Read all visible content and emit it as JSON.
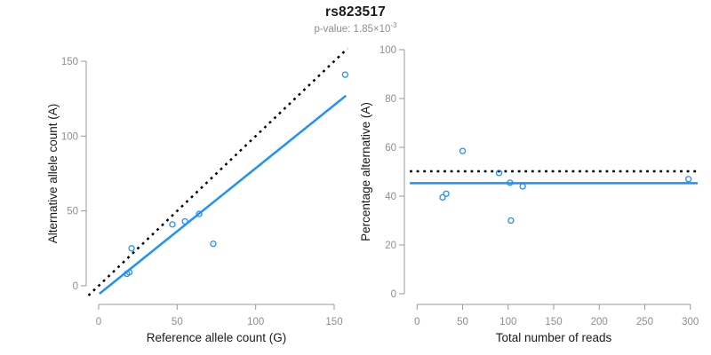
{
  "header": {
    "title": "rs823517",
    "pvalue_label": "p-value: 1.85×10",
    "pvalue_exponent": "-3"
  },
  "colors": {
    "accent_blue": "#1E90FF",
    "line_black": "#000000",
    "axis_gray": "#999999",
    "tick_label_gray": "#8e8e8e",
    "axis_title_color": "#1a1a1a"
  },
  "chart_data": [
    {
      "type": "scatter",
      "name": "allele-count-scatter",
      "title": "",
      "xlabel": "Reference allele count (G)",
      "ylabel": "Alternative allele count (A)",
      "x_ticks": [
        0,
        50,
        100,
        150
      ],
      "y_ticks": [
        0,
        50,
        100,
        150
      ],
      "xlim": [
        -7,
        159
      ],
      "ylim": [
        -7,
        159
      ],
      "grid": false,
      "legend": null,
      "points": [
        [
          18,
          8
        ],
        [
          19.5,
          9
        ],
        [
          21,
          25
        ],
        [
          47,
          41
        ],
        [
          55,
          43
        ],
        [
          64,
          48
        ],
        [
          73,
          28
        ],
        [
          157,
          141
        ]
      ],
      "lines": [
        {
          "name": "identity-line",
          "style": "dotted",
          "color": "#000000",
          "x1": -6.5,
          "y1": -6.5,
          "x2": 158.5,
          "y2": 158.5
        },
        {
          "name": "regression-line",
          "style": "solid",
          "color": "#1E90FF",
          "x1": 0.5,
          "y1": -5.3,
          "x2": 157.5,
          "y2": 127
        }
      ]
    },
    {
      "type": "scatter",
      "name": "percentage-scatter",
      "title": "",
      "xlabel": "Total number of reads",
      "ylabel": "Percentage alternative (A)",
      "x_ticks": [
        0,
        50,
        100,
        150,
        200,
        250,
        300
      ],
      "y_ticks": [
        0,
        20,
        40,
        60,
        80,
        100
      ],
      "xlim": [
        -8,
        310
      ],
      "ylim": [
        0,
        100
      ],
      "grid": false,
      "legend": null,
      "points": [
        [
          28,
          39.5
        ],
        [
          32,
          41
        ],
        [
          50,
          58.5
        ],
        [
          90,
          49.5
        ],
        [
          102,
          45.5
        ],
        [
          116,
          44
        ],
        [
          103,
          30
        ],
        [
          298,
          47
        ]
      ],
      "lines": [
        {
          "name": "expected-50pct-line",
          "style": "dotted",
          "color": "#000000",
          "x1": -8,
          "y1": 50.2,
          "x2": 308,
          "y2": 50.2
        },
        {
          "name": "observed-mean-line",
          "style": "solid",
          "color": "#1E90FF",
          "x1": -8,
          "y1": 45.3,
          "x2": 308,
          "y2": 45.3
        }
      ]
    }
  ]
}
